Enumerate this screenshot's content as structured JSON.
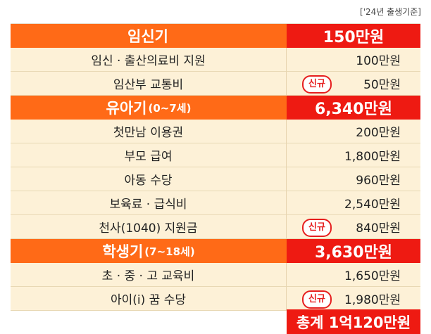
{
  "note": "['24년 출생기준]",
  "sections": [
    {
      "title": "임신기",
      "range": "",
      "amount": "150만원",
      "items": [
        {
          "label": "임신 · 출산의료비 지원",
          "value": "100만원",
          "badge": ""
        },
        {
          "label": "임산부 교통비",
          "value": "50만원",
          "badge": "신규"
        }
      ]
    },
    {
      "title": "유아기",
      "range": "(0~7세)",
      "amount": "6,340만원",
      "items": [
        {
          "label": "첫만남 이용권",
          "value": "200만원",
          "badge": ""
        },
        {
          "label": "부모 급여",
          "value": "1,800만원",
          "badge": ""
        },
        {
          "label": "아동 수당",
          "value": "960만원",
          "badge": ""
        },
        {
          "label": "보육료 · 급식비",
          "value": "2,540만원",
          "badge": ""
        },
        {
          "label": "천사(1040) 지원금",
          "value": "840만원",
          "badge": "신규"
        }
      ]
    },
    {
      "title": "학생기",
      "range": "(7~18세)",
      "amount": "3,630만원",
      "items": [
        {
          "label": "초 · 중 · 고 교육비",
          "value": "1,650만원",
          "badge": ""
        },
        {
          "label": "아이(i) 꿈 수당",
          "value": "1,980만원",
          "badge": "신규"
        }
      ]
    }
  ],
  "total": "총계 1억120만원",
  "colors": {
    "section_left": "#ff6a17",
    "section_right": "#ee1a12",
    "row_bg": "#fdf1d7",
    "badge": "#e61e1e"
  }
}
